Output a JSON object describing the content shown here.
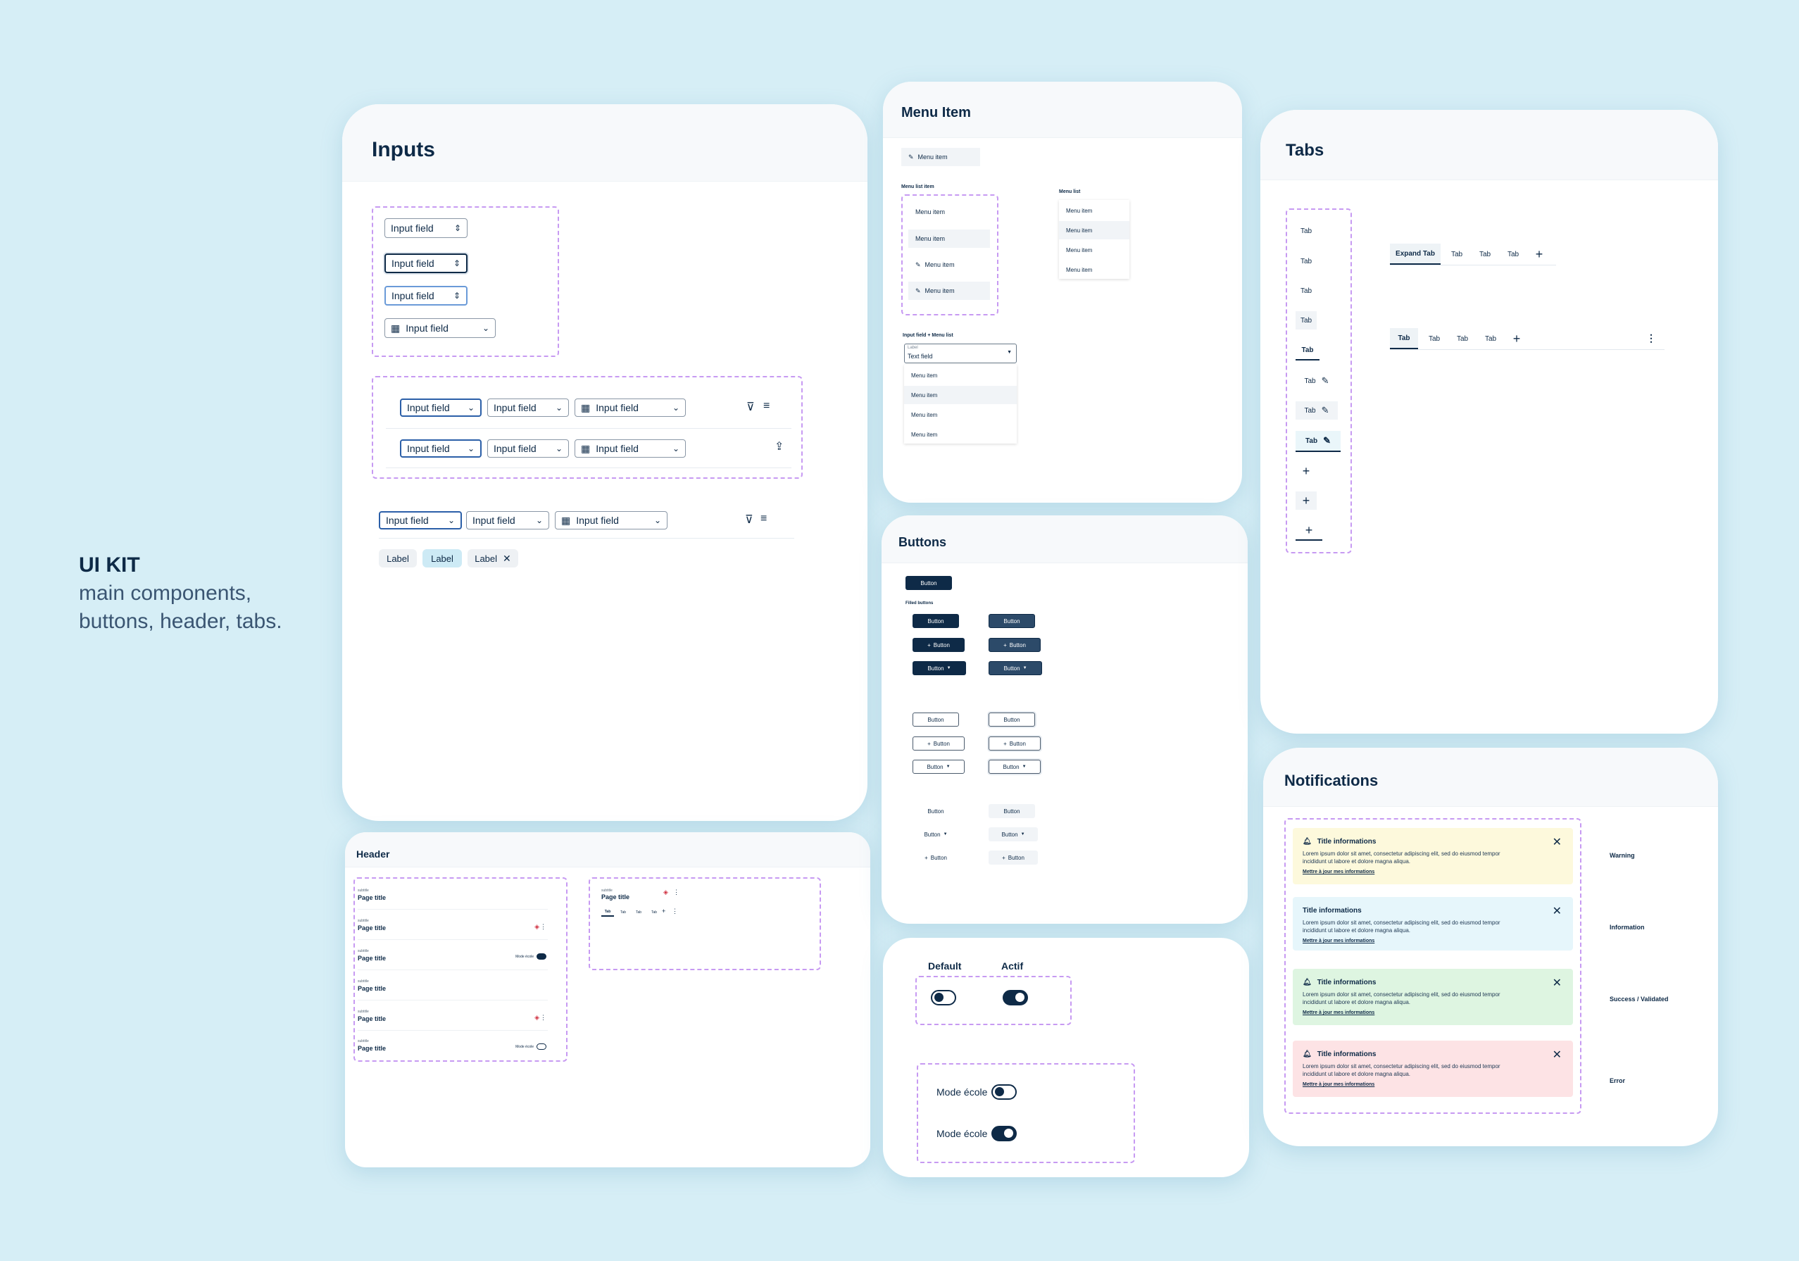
{
  "intro": {
    "title": "UI KIT",
    "subtitle_line1": "main components,",
    "subtitle_line2": "buttons, header, tabs."
  },
  "inputs": {
    "title": "Inputs",
    "field_label": "Input field",
    "chips": [
      "Label",
      "Label",
      "Label"
    ]
  },
  "header_card": {
    "title": "Header",
    "subtitle": "subtitle",
    "page_title": "Page title",
    "mode_label": "Mode école",
    "tabs": [
      "Tab",
      "Tab",
      "Tab",
      "Tab"
    ]
  },
  "menu_item": {
    "title": "Menu Item",
    "single_item": "Menu item",
    "menu_list_item_caption": "Menu list item",
    "menu_list_caption": "Menu list",
    "items": [
      "Menu item",
      "Menu item",
      "Menu item",
      "Menu item"
    ],
    "input_menu_caption": "Input field + Menu list",
    "field_label": "Label",
    "field_value": "Text field"
  },
  "buttons": {
    "title": "Buttons",
    "button_label": "Button",
    "filled_caption": "Filled buttons"
  },
  "toggles": {
    "default_label": "Default",
    "active_label": "Actif",
    "mode_label": "Mode école"
  },
  "tabs_card": {
    "title": "Tabs",
    "tab_label": "Tab",
    "expand_tab": "Expand Tab"
  },
  "notifications": {
    "title": "Notifications",
    "notif_title": "Title informations",
    "body": "Lorem ipsum dolor sit amet, consectetur adipiscing elit, sed do eiusmod tempor incididunt ut labore et dolore magna aliqua.",
    "link": "Mettre à jour mes informations",
    "types": [
      "Warning",
      "Information",
      "Success / Validated",
      "Error"
    ],
    "colors": {
      "warning": "#fdf9dc",
      "information": "#e6f6fb",
      "success": "#def5e1",
      "error": "#fde3e5"
    }
  }
}
